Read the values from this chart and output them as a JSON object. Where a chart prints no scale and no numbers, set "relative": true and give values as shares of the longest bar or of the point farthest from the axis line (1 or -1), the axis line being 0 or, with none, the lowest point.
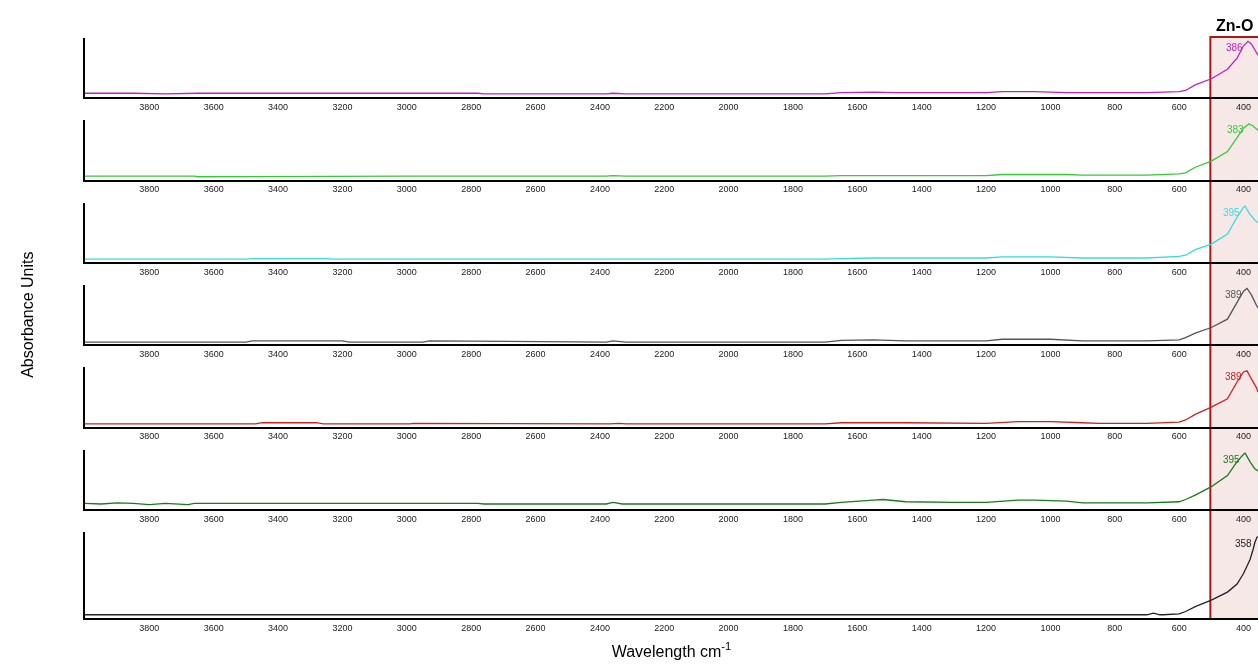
{
  "chart_data": [
    {
      "type": "line",
      "relative": true,
      "tick_labels": "x",
      "xlim": [
        4000,
        355
      ],
      "xticks": [
        3800,
        3600,
        3400,
        3200,
        3000,
        2800,
        2600,
        2400,
        2200,
        2000,
        1800,
        1600,
        1400,
        1200,
        1000,
        800,
        600,
        400
      ],
      "series": [
        {
          "color": "#c020c0",
          "x": [
            4000,
            3850,
            3750,
            3650,
            3000,
            2780,
            2760,
            2380,
            2360,
            2320,
            1700,
            1650,
            1550,
            1480,
            1200,
            1150,
            1050,
            950,
            700,
            600,
            580,
            550,
            500,
            450,
            420,
            400,
            386,
            375,
            365,
            355
          ],
          "values": [
            0.07,
            0.07,
            0.06,
            0.07,
            0.07,
            0.07,
            0.06,
            0.06,
            0.07,
            0.06,
            0.06,
            0.08,
            0.09,
            0.08,
            0.08,
            0.1,
            0.1,
            0.08,
            0.08,
            0.1,
            0.12,
            0.22,
            0.33,
            0.5,
            0.7,
            0.92,
            1,
            0.95,
            0.85,
            0.75
          ]
        }
      ],
      "annotations": [
        {
          "text": "386",
          "x": 386,
          "y": 1
        }
      ],
      "bands": [
        {
          "axis": "x",
          "from": 500,
          "to": 355,
          "label": "Zn-O",
          "color": "#a00000"
        }
      ]
    },
    {
      "type": "line",
      "relative": true,
      "tick_labels": "x",
      "xlim": [
        4000,
        355
      ],
      "xticks": [
        3800,
        3600,
        3400,
        3200,
        3000,
        2800,
        2600,
        2400,
        2200,
        2000,
        1800,
        1600,
        1400,
        1200,
        1000,
        800,
        600,
        400
      ],
      "series": [
        {
          "color": "#33cc33",
          "x": [
            4000,
            3660,
            3650,
            3000,
            2380,
            2360,
            2320,
            1700,
            1650,
            1200,
            1150,
            950,
            900,
            700,
            600,
            580,
            550,
            500,
            450,
            420,
            400,
            383,
            370,
            355
          ],
          "values": [
            0.06,
            0.06,
            0.05,
            0.06,
            0.06,
            0.07,
            0.06,
            0.06,
            0.07,
            0.07,
            0.09,
            0.09,
            0.08,
            0.08,
            0.1,
            0.12,
            0.22,
            0.33,
            0.5,
            0.75,
            0.92,
            1,
            0.96,
            0.88
          ]
        }
      ],
      "annotations": [
        {
          "text": "383",
          "x": 383,
          "y": 1
        }
      ]
    },
    {
      "type": "line",
      "relative": true,
      "tick_labels": "x",
      "xlim": [
        4000,
        355
      ],
      "xticks": [
        3800,
        3600,
        3400,
        3200,
        3000,
        2800,
        2600,
        2400,
        2200,
        2000,
        1800,
        1600,
        1400,
        1200,
        1000,
        800,
        600,
        400
      ],
      "series": [
        {
          "color": "#33dddd",
          "x": [
            4000,
            3500,
            3480,
            3250,
            3230,
            1700,
            1650,
            1550,
            1200,
            1150,
            1000,
            900,
            850,
            700,
            600,
            580,
            550,
            500,
            450,
            420,
            400,
            395,
            380,
            365,
            355
          ],
          "values": [
            0.05,
            0.05,
            0.06,
            0.06,
            0.05,
            0.05,
            0.06,
            0.07,
            0.07,
            0.09,
            0.09,
            0.07,
            0.07,
            0.07,
            0.1,
            0.12,
            0.22,
            0.32,
            0.5,
            0.8,
            0.98,
            1,
            0.85,
            0.75,
            0.7
          ]
        }
      ],
      "annotations": [
        {
          "text": "395",
          "x": 395,
          "y": 1
        }
      ]
    },
    {
      "type": "line",
      "relative": true,
      "tick_labels": "x",
      "xlim": [
        4000,
        355
      ],
      "xticks": [
        3800,
        3600,
        3400,
        3200,
        3000,
        2800,
        2600,
        2400,
        2200,
        2000,
        1800,
        1600,
        1400,
        1200,
        1000,
        800,
        600,
        400
      ],
      "ylabel": "Absorbance Units",
      "series": [
        {
          "color": "#555555",
          "x": [
            4000,
            3500,
            3480,
            3200,
            3180,
            2950,
            2930,
            2380,
            2360,
            2320,
            1700,
            1650,
            1550,
            1450,
            1200,
            1150,
            1000,
            900,
            850,
            700,
            600,
            580,
            550,
            500,
            450,
            420,
            400,
            389,
            375,
            360,
            355
          ],
          "values": [
            0.04,
            0.04,
            0.06,
            0.06,
            0.04,
            0.04,
            0.06,
            0.04,
            0.06,
            0.04,
            0.04,
            0.07,
            0.08,
            0.06,
            0.06,
            0.09,
            0.09,
            0.06,
            0.06,
            0.06,
            0.08,
            0.12,
            0.2,
            0.3,
            0.45,
            0.75,
            0.95,
            1,
            0.88,
            0.7,
            0.65
          ]
        }
      ],
      "annotations": [
        {
          "text": "389",
          "x": 389,
          "y": 1
        }
      ]
    },
    {
      "type": "line",
      "relative": true,
      "tick_labels": "x",
      "xlim": [
        4000,
        355
      ],
      "xticks": [
        3800,
        3600,
        3400,
        3200,
        3000,
        2800,
        2600,
        2400,
        2200,
        2000,
        1800,
        1600,
        1400,
        1200,
        1000,
        800,
        600,
        400
      ],
      "series": [
        {
          "color": "#cc2222",
          "x": [
            4000,
            3470,
            3450,
            3280,
            3260,
            2990,
            2980,
            2370,
            2340,
            2320,
            1700,
            1650,
            1450,
            1200,
            1100,
            1000,
            900,
            850,
            700,
            600,
            580,
            550,
            500,
            450,
            420,
            400,
            389,
            375,
            360,
            355
          ],
          "values": [
            0.05,
            0.05,
            0.07,
            0.07,
            0.05,
            0.05,
            0.06,
            0.05,
            0.06,
            0.05,
            0.05,
            0.07,
            0.07,
            0.06,
            0.09,
            0.09,
            0.07,
            0.06,
            0.06,
            0.08,
            0.12,
            0.22,
            0.35,
            0.5,
            0.8,
            0.98,
            1,
            0.85,
            0.7,
            0.62
          ]
        }
      ],
      "annotations": [
        {
          "text": "389",
          "x": 389,
          "y": 1
        }
      ]
    },
    {
      "type": "line",
      "relative": true,
      "tick_labels": "x",
      "xlim": [
        4000,
        355
      ],
      "xticks": [
        3800,
        3600,
        3400,
        3200,
        3000,
        2800,
        2600,
        2400,
        2200,
        2000,
        1800,
        1600,
        1400,
        1200,
        1000,
        800,
        600,
        400
      ],
      "series": [
        {
          "color": "#1a7a1a",
          "x": [
            4000,
            3950,
            3900,
            3850,
            3800,
            3750,
            3680,
            3660,
            2780,
            2760,
            2380,
            2360,
            2330,
            1700,
            1650,
            1550,
            1520,
            1450,
            1300,
            1200,
            1100,
            1050,
            950,
            900,
            850,
            700,
            600,
            580,
            550,
            500,
            450,
            420,
            400,
            395,
            380,
            365,
            355
          ],
          "values": [
            0.1,
            0.09,
            0.11,
            0.1,
            0.08,
            0.1,
            0.08,
            0.1,
            0.1,
            0.09,
            0.09,
            0.12,
            0.09,
            0.09,
            0.12,
            0.16,
            0.17,
            0.13,
            0.12,
            0.12,
            0.16,
            0.16,
            0.14,
            0.11,
            0.11,
            0.11,
            0.13,
            0.17,
            0.25,
            0.4,
            0.6,
            0.85,
            0.98,
            1,
            0.85,
            0.72,
            0.68
          ]
        }
      ],
      "annotations": [
        {
          "text": "395",
          "x": 395,
          "y": 1
        }
      ]
    },
    {
      "type": "line",
      "relative": true,
      "tick_labels": "x",
      "xlim": [
        4000,
        355
      ],
      "xticks": [
        3800,
        3600,
        3400,
        3200,
        3000,
        2800,
        2600,
        2400,
        2200,
        2000,
        1800,
        1600,
        1400,
        1200,
        1000,
        800,
        600,
        400
      ],
      "xlabel": "Wavelength cm$^{-1}$",
      "series": [
        {
          "color": "#222222",
          "x": [
            4000,
            700,
            680,
            660,
            650,
            600,
            580,
            550,
            500,
            450,
            420,
            400,
            380,
            370,
            365,
            358,
            355
          ],
          "values": [
            0.04,
            0.04,
            0.06,
            0.04,
            0.04,
            0.05,
            0.08,
            0.14,
            0.22,
            0.32,
            0.42,
            0.55,
            0.72,
            0.85,
            0.93,
            1,
            1
          ]
        }
      ],
      "annotations": [
        {
          "text": "358",
          "x": 358,
          "y": 1
        }
      ]
    }
  ]
}
